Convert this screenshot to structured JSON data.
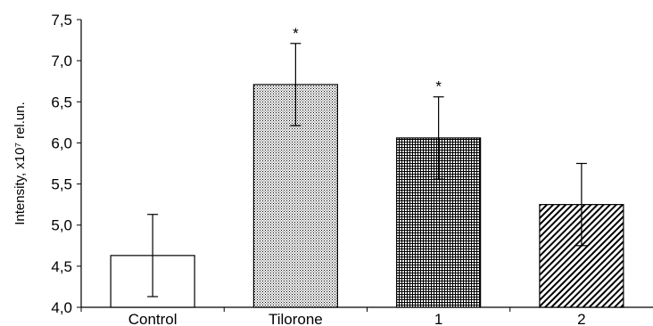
{
  "chart_data": {
    "type": "bar",
    "title": "",
    "xlabel": "",
    "ylabel": "Intensity, x10⁷ rel.un.",
    "ylim": [
      4.0,
      7.5
    ],
    "yticks": [
      "4,0",
      "4,5",
      "5,0",
      "5,5",
      "6,0",
      "6,5",
      "7,0",
      "7,5"
    ],
    "categories": [
      "Control",
      "Tilorone",
      "1",
      "2"
    ],
    "values": [
      4.63,
      6.71,
      6.06,
      5.25
    ],
    "errors": [
      0.5,
      0.5,
      0.5,
      0.5
    ],
    "significance": [
      "",
      "*",
      "*",
      ""
    ],
    "fills": [
      "open",
      "dotted",
      "crosshatch",
      "diagonal-hatch"
    ],
    "grid": false,
    "legend": "none",
    "colors": {
      "axis": "#000000",
      "bar_stroke": "#000000",
      "background": "#ffffff"
    }
  }
}
